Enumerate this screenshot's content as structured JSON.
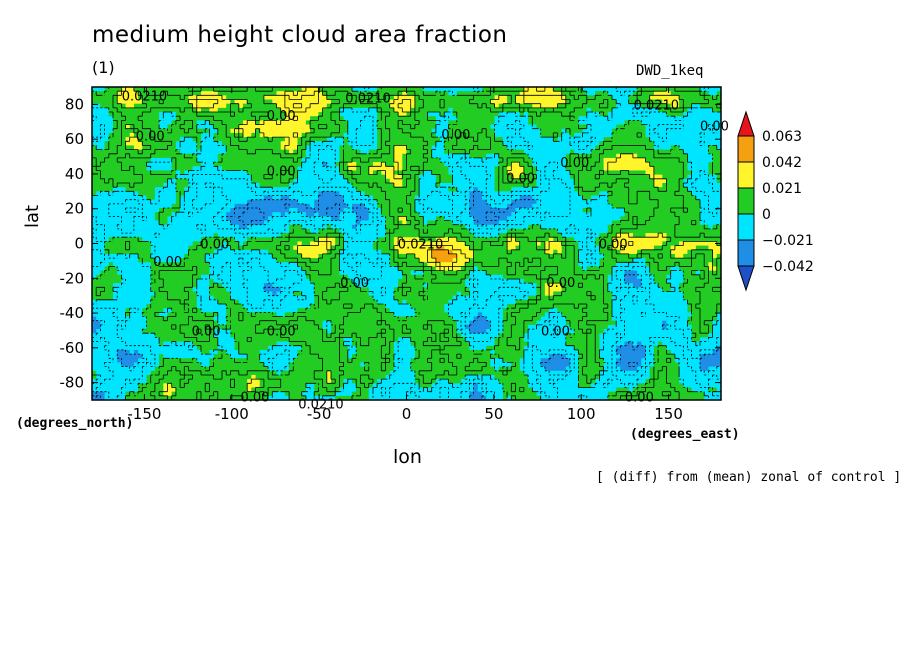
{
  "chart_data": {
    "type": "heatmap",
    "title": "medium height cloud area fraction",
    "subtitle": "(1)",
    "run_label": "DWD_1keq",
    "xlabel": "lon",
    "xunits": "(degrees_east)",
    "ylabel": "lat",
    "yunits": "(degrees_north)",
    "footnote": "[ (diff) from (mean) zonal of control ]",
    "xlim": [
      -180,
      180
    ],
    "ylim": [
      -90,
      90
    ],
    "x_ticks": [
      -150,
      -100,
      -50,
      0,
      50,
      100,
      150
    ],
    "y_ticks": [
      80,
      60,
      40,
      20,
      0,
      -20,
      -40,
      -60,
      -80
    ],
    "colorbar": {
      "levels": [
        "0.063",
        "0.042",
        "0.021",
        "0",
        "−0.021",
        "−0.042"
      ],
      "colors": [
        "#e8141c",
        "#f5a00f",
        "#fff52a",
        "#22cc22",
        "#00e5ff",
        "#1e8ee6",
        "#1e50c8"
      ]
    },
    "contour_labels": [
      {
        "text": "0.0210",
        "lon": -163,
        "lat": 85
      },
      {
        "text": "0.0210",
        "lon": -35,
        "lat": 84
      },
      {
        "text": "0.0210",
        "lon": 130,
        "lat": 80
      },
      {
        "text": "0.00",
        "lon": -80,
        "lat": 74
      },
      {
        "text": "0.00",
        "lon": -155,
        "lat": 62
      },
      {
        "text": "0.00",
        "lon": 20,
        "lat": 63
      },
      {
        "text": "0.00",
        "lon": 168,
        "lat": 68
      },
      {
        "text": "0.00",
        "lon": -80,
        "lat": 42
      },
      {
        "text": "0.00",
        "lon": 88,
        "lat": 47
      },
      {
        "text": "0.00",
        "lon": 57,
        "lat": 38
      },
      {
        "text": "0.00",
        "lon": -118,
        "lat": 0
      },
      {
        "text": "0.0210",
        "lon": -5,
        "lat": 0
      },
      {
        "text": "0.00",
        "lon": 110,
        "lat": 0
      },
      {
        "text": "0.00",
        "lon": -145,
        "lat": -10
      },
      {
        "text": "0.00",
        "lon": -38,
        "lat": -22
      },
      {
        "text": "0.00",
        "lon": 80,
        "lat": -22
      },
      {
        "text": "0.00",
        "lon": -123,
        "lat": -50
      },
      {
        "text": "0.00",
        "lon": -80,
        "lat": -50
      },
      {
        "text": "0.00",
        "lon": 77,
        "lat": -50
      },
      {
        "text": "0.00",
        "lon": -95,
        "lat": -88
      },
      {
        "text": "0.0210",
        "lon": -62,
        "lat": -92
      },
      {
        "text": "0.00",
        "lon": 125,
        "lat": -88
      }
    ]
  }
}
